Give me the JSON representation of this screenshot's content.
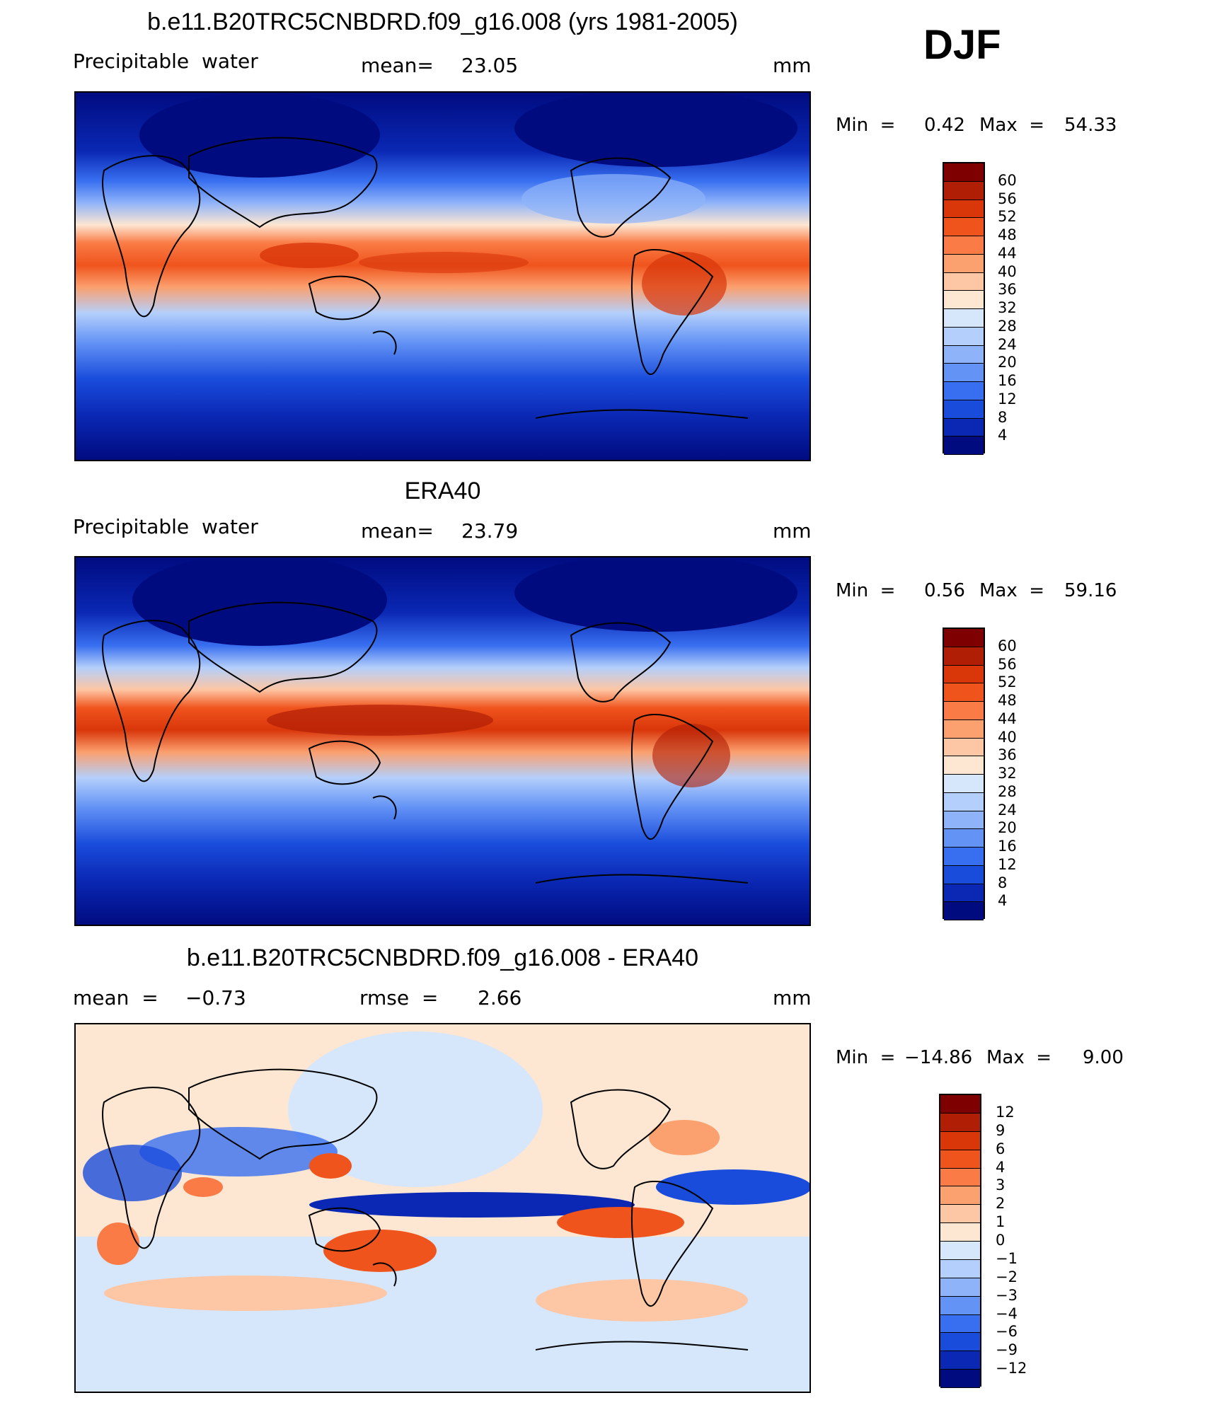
{
  "panels": {
    "model": {
      "title": "b.e11.B20TRC5CNBDRD.f09_g16.008 (yrs 1981-2005)",
      "variable": "Precipitable  water",
      "mean_label": "mean=",
      "mean_value": "23.05",
      "units": "mm",
      "min_label": "Min  =",
      "min_value": "0.42",
      "max_label": "Max  =",
      "max_value": "54.33"
    },
    "obs": {
      "title": "ERA40",
      "variable": "Precipitable  water",
      "mean_label": "mean=",
      "mean_value": "23.79",
      "units": "mm",
      "min_label": "Min  =",
      "min_value": "0.56",
      "max_label": "Max  =",
      "max_value": "59.16"
    },
    "diff": {
      "title": "b.e11.B20TRC5CNBDRD.f09_g16.008 - ERA40",
      "mean_label": "mean  =",
      "mean_value": "−0.73",
      "rmse_label": "rmse  =",
      "rmse_value": "2.66",
      "units": "mm",
      "min_label": "Min  =",
      "min_value": "−14.86",
      "max_label": "Max  =",
      "max_value": "9.00"
    }
  },
  "season": "DJF",
  "colorbars": {
    "abs_levels": [
      "60",
      "56",
      "52",
      "48",
      "44",
      "40",
      "36",
      "32",
      "28",
      "24",
      "20",
      "16",
      "12",
      "8",
      "4"
    ],
    "abs_colors": [
      "#7f0000",
      "#b01e05",
      "#d9360a",
      "#f0541d",
      "#fa7b45",
      "#fba06f",
      "#fdc6a4",
      "#fde6d2",
      "#d6e6fb",
      "#b4cffb",
      "#8fb3f9",
      "#6393f5",
      "#386ff0",
      "#1a4cdc",
      "#0a28b4",
      "#000b80"
    ],
    "diff_levels": [
      "12",
      "9",
      "6",
      "4",
      "3",
      "2",
      "1",
      "0",
      "−1",
      "−2",
      "−3",
      "−4",
      "−6",
      "−9",
      "−12"
    ],
    "diff_colors": [
      "#7f0000",
      "#b01e05",
      "#d9360a",
      "#f0541d",
      "#fa7b45",
      "#fba06f",
      "#fdc6a4",
      "#fde6d2",
      "#d6e6fb",
      "#b4cffb",
      "#8fb3f9",
      "#6393f5",
      "#386ff0",
      "#1a4cdc",
      "#0a28b4",
      "#000b80"
    ]
  }
}
